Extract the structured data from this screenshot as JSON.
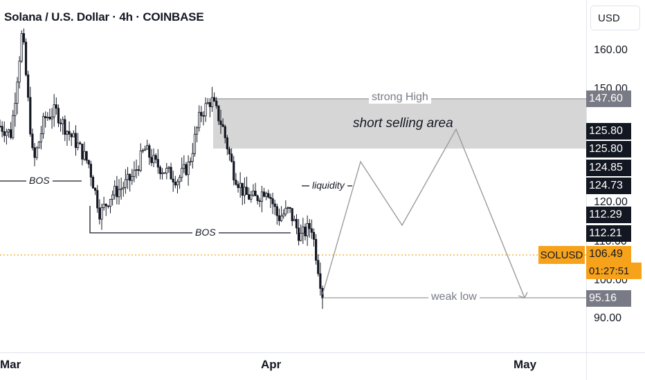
{
  "title": "Solana / U.S. Dollar · 4h · COINBASE",
  "currency_button": "USD",
  "symbol": "SOLUSD",
  "last_price": "106.49",
  "countdown": "01:27:51",
  "price_axis_labels": [
    "160.00",
    "150.00",
    "120.00",
    "110.00",
    "100.00",
    "90.00"
  ],
  "time_axis_labels": [
    "Mar",
    "Apr",
    "May"
  ],
  "price_tags": {
    "strong_high": "147.60",
    "zone_top": "125.80",
    "zone_bottom": "125.80",
    "level_1": "124.85",
    "level_2": "124.73",
    "level_3": "112.29",
    "level_4": "112.21",
    "weak_low": "95.16"
  },
  "annotations": {
    "strong_high": "strong High",
    "short_area": "short selling area",
    "bos_1": "BOS",
    "bos_2": "BOS",
    "liquidity": "liquidity",
    "weak_low": "weak low"
  },
  "colors": {
    "candle": "#131722",
    "zone": "#d6d6d6",
    "projection": "#9b9b9b",
    "last_price": "#f7a21b",
    "tag_dark": "#131722",
    "tag_gray": "#787b86"
  },
  "chart_data": {
    "type": "line",
    "instrument": "SOLUSD",
    "timeframe": "4h",
    "ylim": [
      85,
      170
    ],
    "x_ticks": [
      "Mar",
      "Apr",
      "May"
    ],
    "price_path": {
      "x": [
        "Feb 28",
        "Mar 1",
        "Mar 2",
        "Mar 4",
        "Mar 5",
        "Mar 7",
        "Mar 9",
        "Mar 11",
        "Mar 13",
        "Mar 14",
        "Mar 15",
        "Mar 17",
        "Mar 19",
        "Mar 21",
        "Mar 23",
        "Mar 24",
        "Mar 25",
        "Mar 26",
        "Mar 27",
        "Mar 28",
        "Mar 29",
        "Mar 30",
        "Mar 31",
        "Apr 1",
        "Apr 2",
        "Apr 3",
        "Apr 4",
        "Apr 5",
        "Apr 6",
        "Apr 7"
      ],
      "y": [
        140,
        138,
        165,
        130,
        142,
        144,
        139,
        135,
        130,
        117,
        122,
        124,
        127,
        134,
        130,
        128,
        126,
        130,
        143,
        147,
        140,
        128,
        122,
        121,
        124,
        116,
        118,
        111,
        114,
        96
      ]
    },
    "projection": {
      "x": [
        "Apr 8",
        "Apr 13",
        "Apr 19",
        "Apr 25",
        "May 2"
      ],
      "y": [
        97,
        130,
        113,
        141,
        96
      ]
    },
    "zones": [
      {
        "label": "short selling area",
        "from": 125.8,
        "to": 147.6
      }
    ],
    "levels": [
      {
        "name": "strong High",
        "value": 147.6
      },
      {
        "name": "BOS",
        "value": 126
      },
      {
        "name": "BOS",
        "value": 112.2
      },
      {
        "name": "liquidity",
        "value": 124.8
      },
      {
        "name": "weak low",
        "value": 95.16
      },
      {
        "name": "SOLUSD",
        "value": 106.49
      }
    ]
  }
}
